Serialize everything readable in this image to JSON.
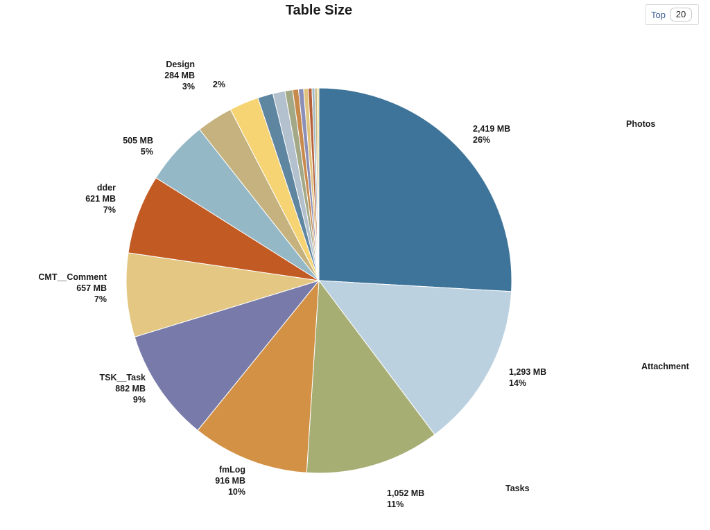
{
  "title": "Table Size",
  "top_control": {
    "label": "Top",
    "value": "20"
  },
  "chart_data": {
    "type": "pie",
    "title": "Table Size",
    "unit": "MB",
    "start": "12 o'clock, clockwise",
    "slices": [
      {
        "name": "Photos",
        "value": 2419,
        "size": "2,419 MB",
        "pct": "26%",
        "color": "#3e7499"
      },
      {
        "name": "Attachment",
        "value": 1293,
        "size": "1,293 MB",
        "pct": "14%",
        "color": "#bcd1df"
      },
      {
        "name": "Tasks",
        "value": 1052,
        "size": "1,052 MB",
        "pct": "11%",
        "color": "#a7ae74"
      },
      {
        "name": "fmLog",
        "value": 916,
        "size": "916 MB",
        "pct": "10%",
        "color": "#d39145"
      },
      {
        "name": "TSK__Task",
        "value": 882,
        "size": "882 MB",
        "pct": "9%",
        "color": "#787ba9"
      },
      {
        "name": "CMT__Comment",
        "value": 657,
        "size": "657 MB",
        "pct": "7%",
        "color": "#e3c782"
      },
      {
        "name": "dder",
        "value": 621,
        "size": "621 MB",
        "pct": "7%",
        "color": "#c25a23"
      },
      {
        "name": "",
        "value": 505,
        "size": "505 MB",
        "pct": "5%",
        "color": "#94b8c6"
      },
      {
        "name": "Design",
        "value": 284,
        "size": "284 MB",
        "pct": "3%",
        "color": "#c5b27e"
      },
      {
        "name": "",
        "value": 230,
        "size": "",
        "pct": "2%",
        "color": "#f6d474"
      },
      {
        "name": "",
        "value": 120,
        "size": "",
        "pct": "",
        "color": "#5f86a0"
      },
      {
        "name": "",
        "value": 95,
        "size": "",
        "pct": "",
        "color": "#b2c1cd"
      },
      {
        "name": "",
        "value": 60,
        "size": "",
        "pct": "",
        "color": "#a3a987"
      },
      {
        "name": "",
        "value": 45,
        "size": "",
        "pct": "",
        "color": "#c78a4c"
      },
      {
        "name": "",
        "value": 40,
        "size": "",
        "pct": "",
        "color": "#8b8eb6"
      },
      {
        "name": "",
        "value": 35,
        "size": "",
        "pct": "",
        "color": "#e0c47e"
      },
      {
        "name": "",
        "value": 30,
        "size": "",
        "pct": "",
        "color": "#b7613a"
      },
      {
        "name": "",
        "value": 22,
        "size": "",
        "pct": "",
        "color": "#9fbac7"
      },
      {
        "name": "",
        "value": 18,
        "size": "",
        "pct": "",
        "color": "#c7b681"
      },
      {
        "name": "",
        "value": 14,
        "size": "",
        "pct": "",
        "color": "#f2d780"
      }
    ]
  }
}
